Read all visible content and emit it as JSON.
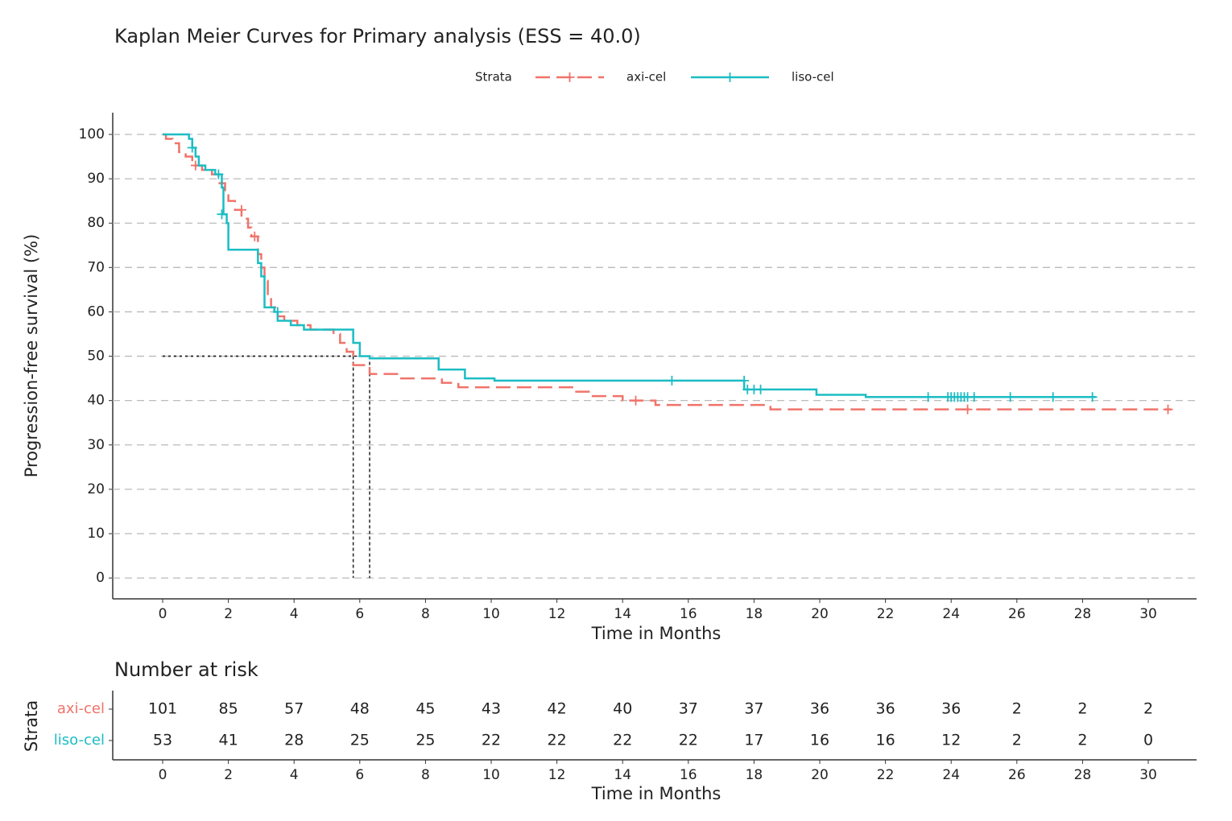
{
  "chart_data": [
    {
      "type": "step",
      "title": "Kaplan Meier Curves for Primary analysis (ESS = 40.0)",
      "legend_title": "Strata",
      "xlabel": "Time in Months",
      "ylabel": "Progression-free survival (%)",
      "xlim": [
        -1.52,
        31.47
      ],
      "ylim": [
        -4.7,
        104.9
      ],
      "xticks": [
        0,
        2,
        4,
        6,
        8,
        10,
        12,
        14,
        16,
        18,
        20,
        22,
        24,
        26,
        28,
        30
      ],
      "yticks": [
        0,
        10,
        20,
        30,
        40,
        50,
        60,
        70,
        80,
        90,
        100
      ],
      "grid": "y-dashed",
      "legend": "top",
      "median_survival": 50,
      "series": [
        {
          "name": "axi-cel",
          "color": "#f0736a",
          "dashed": true,
          "x": [
            0,
            0.1,
            0.3,
            0.5,
            0.7,
            0.9,
            1.2,
            1.5,
            1.7,
            1.9,
            2.0,
            2.2,
            2.4,
            2.6,
            2.7,
            2.9,
            3.0,
            3.1,
            3.2,
            3.3,
            3.5,
            3.7,
            4.1,
            4.5,
            5.2,
            5.4,
            5.6,
            5.8,
            6.3,
            7.2,
            8.5,
            9.0,
            10.5,
            12.5,
            13.0,
            14.0,
            15.0,
            18.5,
            30.7
          ],
          "values": [
            100,
            99,
            98,
            96,
            95,
            93,
            92,
            91,
            89,
            87,
            85,
            83,
            81,
            79,
            77,
            73,
            70,
            67,
            64,
            61,
            59,
            58,
            57,
            56,
            55,
            53,
            51,
            48,
            46,
            45,
            44,
            43,
            43,
            42,
            41,
            40,
            39,
            38,
            38
          ],
          "censor_x": [
            1.0,
            2.4,
            2.8,
            14.4,
            24.5,
            30.6
          ],
          "censor_values": [
            93,
            83,
            77,
            40,
            38,
            38
          ],
          "median": 5.8
        },
        {
          "name": "liso-cel",
          "color": "#1bbdc4",
          "dashed": false,
          "x": [
            0,
            0.8,
            0.9,
            1.0,
            1.1,
            1.3,
            1.6,
            1.8,
            1.85,
            1.95,
            2.0,
            2.9,
            3.0,
            3.1,
            3.4,
            3.5,
            3.9,
            4.3,
            5.8,
            6.0,
            6.3,
            8.4,
            9.2,
            10.1,
            17.7,
            19.9,
            21.4,
            28.4
          ],
          "values": [
            100,
            99,
            97,
            95,
            93,
            92,
            91,
            88,
            82,
            80,
            74,
            71,
            68,
            61,
            60,
            58,
            57,
            56,
            53,
            50,
            49.5,
            47,
            45,
            44.5,
            42.5,
            41.3,
            40.8,
            40.8
          ],
          "censor_x": [
            0.9,
            1.7,
            1.8,
            3.5,
            15.5,
            17.7,
            17.8,
            18.0,
            18.2,
            23.3,
            23.9,
            24.0,
            24.1,
            24.2,
            24.3,
            24.4,
            24.5,
            24.7,
            25.8,
            27.1,
            28.3
          ],
          "censor_values": [
            97,
            91,
            82,
            60,
            44.5,
            44.5,
            42.5,
            42.5,
            42.5,
            40.8,
            40.8,
            40.8,
            40.8,
            40.8,
            40.8,
            40.8,
            40.8,
            40.8,
            40.8,
            40.8,
            40.8
          ],
          "median": 6.3
        }
      ]
    },
    {
      "type": "risk-table",
      "title": "Number at risk",
      "ylabel": "Strata",
      "xlabel": "Time in Months",
      "xlim": [
        -1.52,
        31.47
      ],
      "xticks": [
        0,
        2,
        4,
        6,
        8,
        10,
        12,
        14,
        16,
        18,
        20,
        22,
        24,
        26,
        28,
        30
      ],
      "rows": [
        {
          "name": "axi-cel",
          "color": "#f0736a",
          "values": [
            101,
            85,
            57,
            48,
            45,
            43,
            42,
            40,
            37,
            37,
            36,
            36,
            36,
            2,
            2,
            2
          ]
        },
        {
          "name": "liso-cel",
          "color": "#1bbdc4",
          "values": [
            53,
            41,
            28,
            25,
            25,
            22,
            22,
            22,
            22,
            17,
            16,
            16,
            12,
            2,
            2,
            0
          ]
        }
      ]
    }
  ]
}
